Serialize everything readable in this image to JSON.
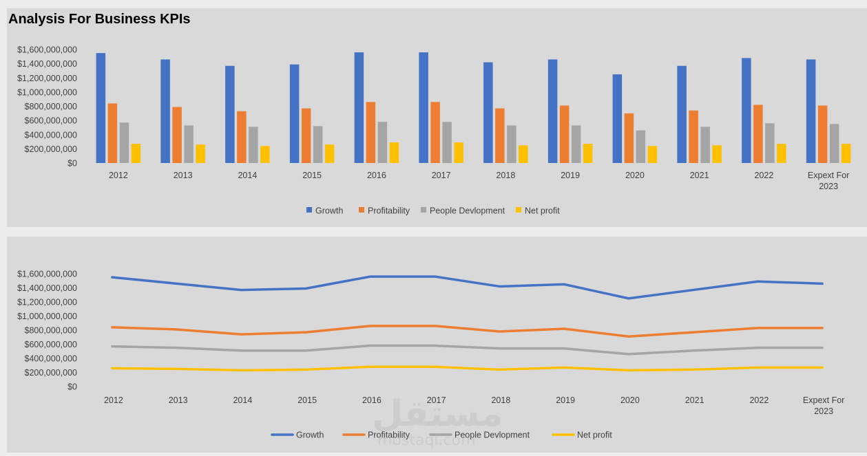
{
  "chart_data": [
    {
      "type": "bar",
      "title": "Analysis For Business KPIs",
      "categories": [
        "2012",
        "2013",
        "2014",
        "2015",
        "2016",
        "2017",
        "2018",
        "2019",
        "2020",
        "2021",
        "2022",
        "Expext For 2023"
      ],
      "series": [
        {
          "name": "Growth",
          "color": "#4472c4",
          "values": [
            1550000000,
            1460000000,
            1370000000,
            1390000000,
            1560000000,
            1560000000,
            1420000000,
            1460000000,
            1250000000,
            1370000000,
            1480000000,
            1460000000
          ]
        },
        {
          "name": "Profitability",
          "color": "#ed7d31",
          "values": [
            840000000,
            790000000,
            730000000,
            770000000,
            860000000,
            860000000,
            770000000,
            810000000,
            700000000,
            740000000,
            820000000,
            810000000
          ]
        },
        {
          "name": "People Devlopment",
          "color": "#a5a5a5",
          "values": [
            570000000,
            530000000,
            510000000,
            520000000,
            580000000,
            580000000,
            530000000,
            530000000,
            460000000,
            510000000,
            560000000,
            550000000
          ]
        },
        {
          "name": "Net profit",
          "color": "#ffc000",
          "values": [
            270000000,
            260000000,
            240000000,
            260000000,
            290000000,
            290000000,
            250000000,
            270000000,
            240000000,
            250000000,
            270000000,
            270000000
          ]
        }
      ],
      "ylim": [
        0,
        1600000000
      ],
      "y_ticks": [
        "$0",
        "$200,000,000",
        "$400,000,000",
        "$600,000,000",
        "$800,000,000",
        "$1,000,000,000",
        "$1,200,000,000",
        "$1,400,000,000",
        "$1,600,000,000"
      ],
      "legend": "bottom",
      "grid": false
    },
    {
      "type": "line",
      "title": "",
      "categories": [
        "2012",
        "2013",
        "2014",
        "2015",
        "2016",
        "2017",
        "2018",
        "2019",
        "2020",
        "2021",
        "2022",
        "Expext For 2023"
      ],
      "series": [
        {
          "name": "Growth",
          "color": "#4472c4",
          "values": [
            1550000000,
            1460000000,
            1370000000,
            1390000000,
            1560000000,
            1560000000,
            1420000000,
            1450000000,
            1250000000,
            1370000000,
            1490000000,
            1460000000
          ]
        },
        {
          "name": "Profitability",
          "color": "#ed7d31",
          "values": [
            840000000,
            810000000,
            740000000,
            770000000,
            860000000,
            860000000,
            780000000,
            820000000,
            710000000,
            770000000,
            830000000,
            830000000
          ]
        },
        {
          "name": "People Devlopment",
          "color": "#a5a5a5",
          "values": [
            570000000,
            550000000,
            510000000,
            510000000,
            580000000,
            580000000,
            540000000,
            540000000,
            460000000,
            510000000,
            550000000,
            550000000
          ]
        },
        {
          "name": "Net profit",
          "color": "#ffc000",
          "values": [
            260000000,
            250000000,
            230000000,
            240000000,
            280000000,
            280000000,
            240000000,
            270000000,
            230000000,
            240000000,
            270000000,
            270000000
          ]
        }
      ],
      "ylim": [
        0,
        1600000000
      ],
      "y_ticks": [
        "$0",
        "$200,000,000",
        "$400,000,000",
        "$600,000,000",
        "$800,000,000",
        "$1,000,000,000",
        "$1,200,000,000",
        "$1,400,000,000",
        "$1,600,000,000"
      ],
      "legend": "bottom",
      "grid": false
    }
  ],
  "watermark": {
    "text": "مستقل",
    "sub": "mostaql.com"
  }
}
